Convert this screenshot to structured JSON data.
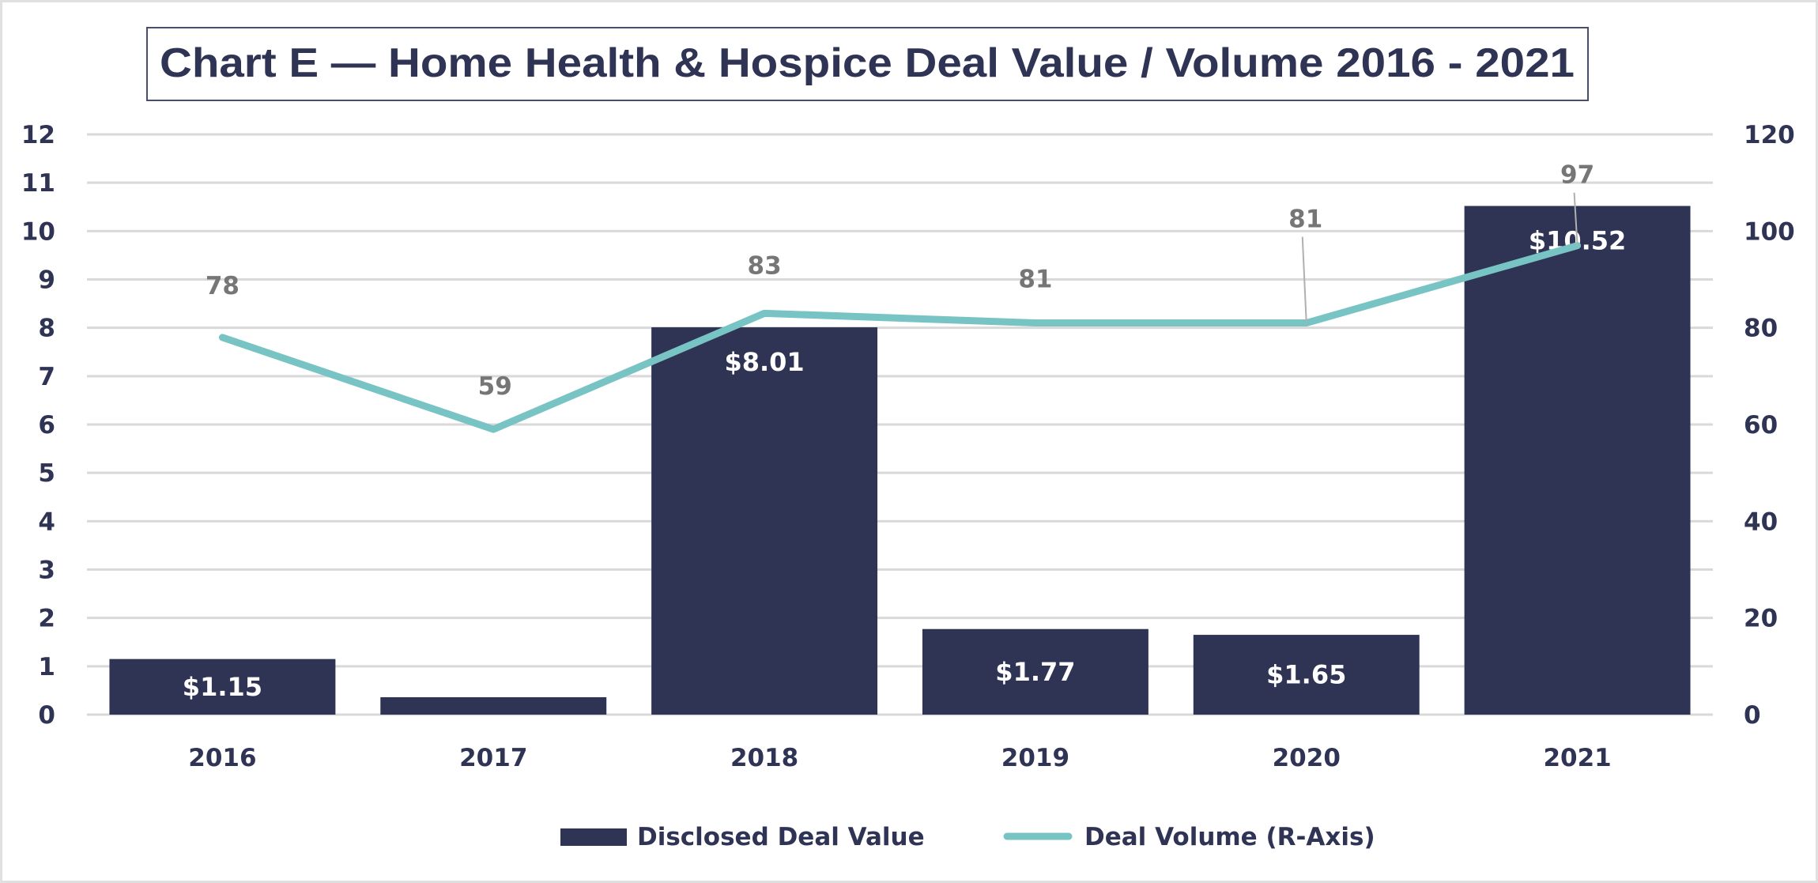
{
  "chart_data": {
    "type": "bar",
    "title": "Chart E — Home Health & Hospice Deal Value / Volume 2016 - 2021",
    "categories": [
      "2016",
      "2017",
      "2018",
      "2019",
      "2020",
      "2021"
    ],
    "series": [
      {
        "name": "Disclosed Deal Value",
        "type": "bar",
        "axis": "left",
        "color": "#2F3354",
        "values": [
          1.15,
          0.36,
          8.01,
          1.77,
          1.65,
          10.52
        ],
        "labels": [
          "$1.15",
          "",
          "$8.01",
          "$1.77",
          "$1.65",
          "$10.52"
        ]
      },
      {
        "name": "Deal Volume (R-Axis)",
        "type": "line",
        "axis": "right",
        "color": "#78C4C4",
        "values": [
          78,
          59,
          83,
          81,
          81,
          97
        ],
        "labels": [
          "78",
          "59",
          "83",
          "81",
          "81",
          "97"
        ]
      }
    ],
    "y_left": {
      "min": 0,
      "max": 12,
      "step": 1,
      "ticks": [
        "0",
        "1",
        "2",
        "3",
        "4",
        "5",
        "6",
        "7",
        "8",
        "9",
        "10",
        "11",
        "12"
      ]
    },
    "y_right": {
      "min": 0,
      "max": 120,
      "step": 20,
      "ticks": [
        "0",
        "20",
        "40",
        "60",
        "80",
        "100",
        "120"
      ]
    },
    "xlabel": "",
    "ylabel": "",
    "grid": true,
    "legend": "bottom-center",
    "legend_entries": [
      "Disclosed Deal Value",
      "Deal Volume (R-Axis)"
    ]
  }
}
